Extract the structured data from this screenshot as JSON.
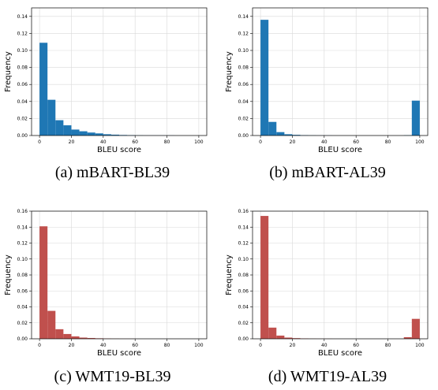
{
  "panels": [
    {
      "caption": "(a) mBART-BL39",
      "chart_data": {
        "type": "bar",
        "title": "",
        "xlabel": "BLEU score",
        "ylabel": "Frequency",
        "xlim": [
          -5,
          105
        ],
        "ylim": [
          0,
          0.15
        ],
        "xticks": [
          0,
          20,
          40,
          60,
          80,
          100
        ],
        "yticks": [
          0.0,
          0.02,
          0.04,
          0.06,
          0.08,
          0.1,
          0.12,
          0.14
        ],
        "yticklabels": [
          "0.00",
          "0.02",
          "0.04",
          "0.06",
          "0.08",
          "0.10",
          "0.12",
          "0.14"
        ],
        "grid": true,
        "color": "#1f77b4",
        "bin_width": 5,
        "bin_starts": [
          0,
          5,
          10,
          15,
          20,
          25,
          30,
          35,
          40,
          45,
          50,
          55,
          60,
          65,
          70,
          75,
          80,
          85,
          90,
          95
        ],
        "values": [
          0.109,
          0.042,
          0.018,
          0.012,
          0.007,
          0.005,
          0.0035,
          0.0025,
          0.0015,
          0.001,
          0.0006,
          0.0004,
          0.0002,
          0.0001,
          0.0001,
          0.0001,
          0.0001,
          0.0,
          0.0,
          0.0
        ]
      }
    },
    {
      "caption": "(b) mBART-AL39",
      "chart_data": {
        "type": "bar",
        "title": "",
        "xlabel": "BLEU score",
        "ylabel": "Frequency",
        "xlim": [
          -5,
          105
        ],
        "ylim": [
          0,
          0.15
        ],
        "xticks": [
          0,
          20,
          40,
          60,
          80,
          100
        ],
        "yticks": [
          0.0,
          0.02,
          0.04,
          0.06,
          0.08,
          0.1,
          0.12,
          0.14
        ],
        "yticklabels": [
          "0.00",
          "0.02",
          "0.04",
          "0.06",
          "0.08",
          "0.10",
          "0.12",
          "0.14"
        ],
        "grid": true,
        "color": "#1f77b4",
        "bin_width": 5,
        "bin_starts": [
          0,
          5,
          10,
          15,
          20,
          25,
          30,
          35,
          40,
          45,
          50,
          55,
          60,
          65,
          70,
          75,
          80,
          85,
          90,
          95
        ],
        "values": [
          0.136,
          0.016,
          0.004,
          0.0015,
          0.0008,
          0.0004,
          0.0002,
          0.0001,
          0.0001,
          0.0,
          0.0,
          0.0,
          0.0,
          0.0,
          0.0,
          0.0,
          0.0,
          0.0,
          0.0003,
          0.041
        ]
      }
    },
    {
      "caption": "(c) WMT19-BL39",
      "chart_data": {
        "type": "bar",
        "title": "",
        "xlabel": "BLEU score",
        "ylabel": "Frequency",
        "xlim": [
          -5,
          105
        ],
        "ylim": [
          0,
          0.16
        ],
        "xticks": [
          0,
          20,
          40,
          60,
          80,
          100
        ],
        "yticks": [
          0.0,
          0.02,
          0.04,
          0.06,
          0.08,
          0.1,
          0.12,
          0.14,
          0.16
        ],
        "yticklabels": [
          "0.00",
          "0.02",
          "0.04",
          "0.06",
          "0.08",
          "0.10",
          "0.12",
          "0.14",
          "0.16"
        ],
        "grid": true,
        "color": "#c0504d",
        "bin_width": 5,
        "bin_starts": [
          0,
          5,
          10,
          15,
          20,
          25,
          30,
          35,
          40,
          45,
          50,
          55,
          60,
          65,
          70,
          75,
          80,
          85,
          90,
          95
        ],
        "values": [
          0.141,
          0.035,
          0.012,
          0.006,
          0.003,
          0.0015,
          0.001,
          0.0006,
          0.0003,
          0.0002,
          0.0001,
          0.0001,
          0.0,
          0.0,
          0.0,
          0.0,
          0.0,
          0.0,
          0.0,
          0.0
        ]
      }
    },
    {
      "caption": "(d) WMT19-AL39",
      "chart_data": {
        "type": "bar",
        "title": "",
        "xlabel": "BLEU score",
        "ylabel": "Frequency",
        "xlim": [
          -5,
          105
        ],
        "ylim": [
          0,
          0.16
        ],
        "xticks": [
          0,
          20,
          40,
          60,
          80,
          100
        ],
        "yticks": [
          0.0,
          0.02,
          0.04,
          0.06,
          0.08,
          0.1,
          0.12,
          0.14,
          0.16
        ],
        "yticklabels": [
          "0.00",
          "0.02",
          "0.04",
          "0.06",
          "0.08",
          "0.10",
          "0.12",
          "0.14",
          "0.16"
        ],
        "grid": true,
        "color": "#c0504d",
        "bin_width": 5,
        "bin_starts": [
          0,
          5,
          10,
          15,
          20,
          25,
          30,
          35,
          40,
          45,
          50,
          55,
          60,
          65,
          70,
          75,
          80,
          85,
          90,
          95
        ],
        "values": [
          0.154,
          0.014,
          0.004,
          0.0015,
          0.0008,
          0.0004,
          0.0002,
          0.0001,
          0.0001,
          0.0,
          0.0,
          0.0,
          0.0,
          0.0,
          0.0,
          0.0,
          0.0,
          0.0,
          0.002,
          0.025
        ]
      }
    }
  ]
}
